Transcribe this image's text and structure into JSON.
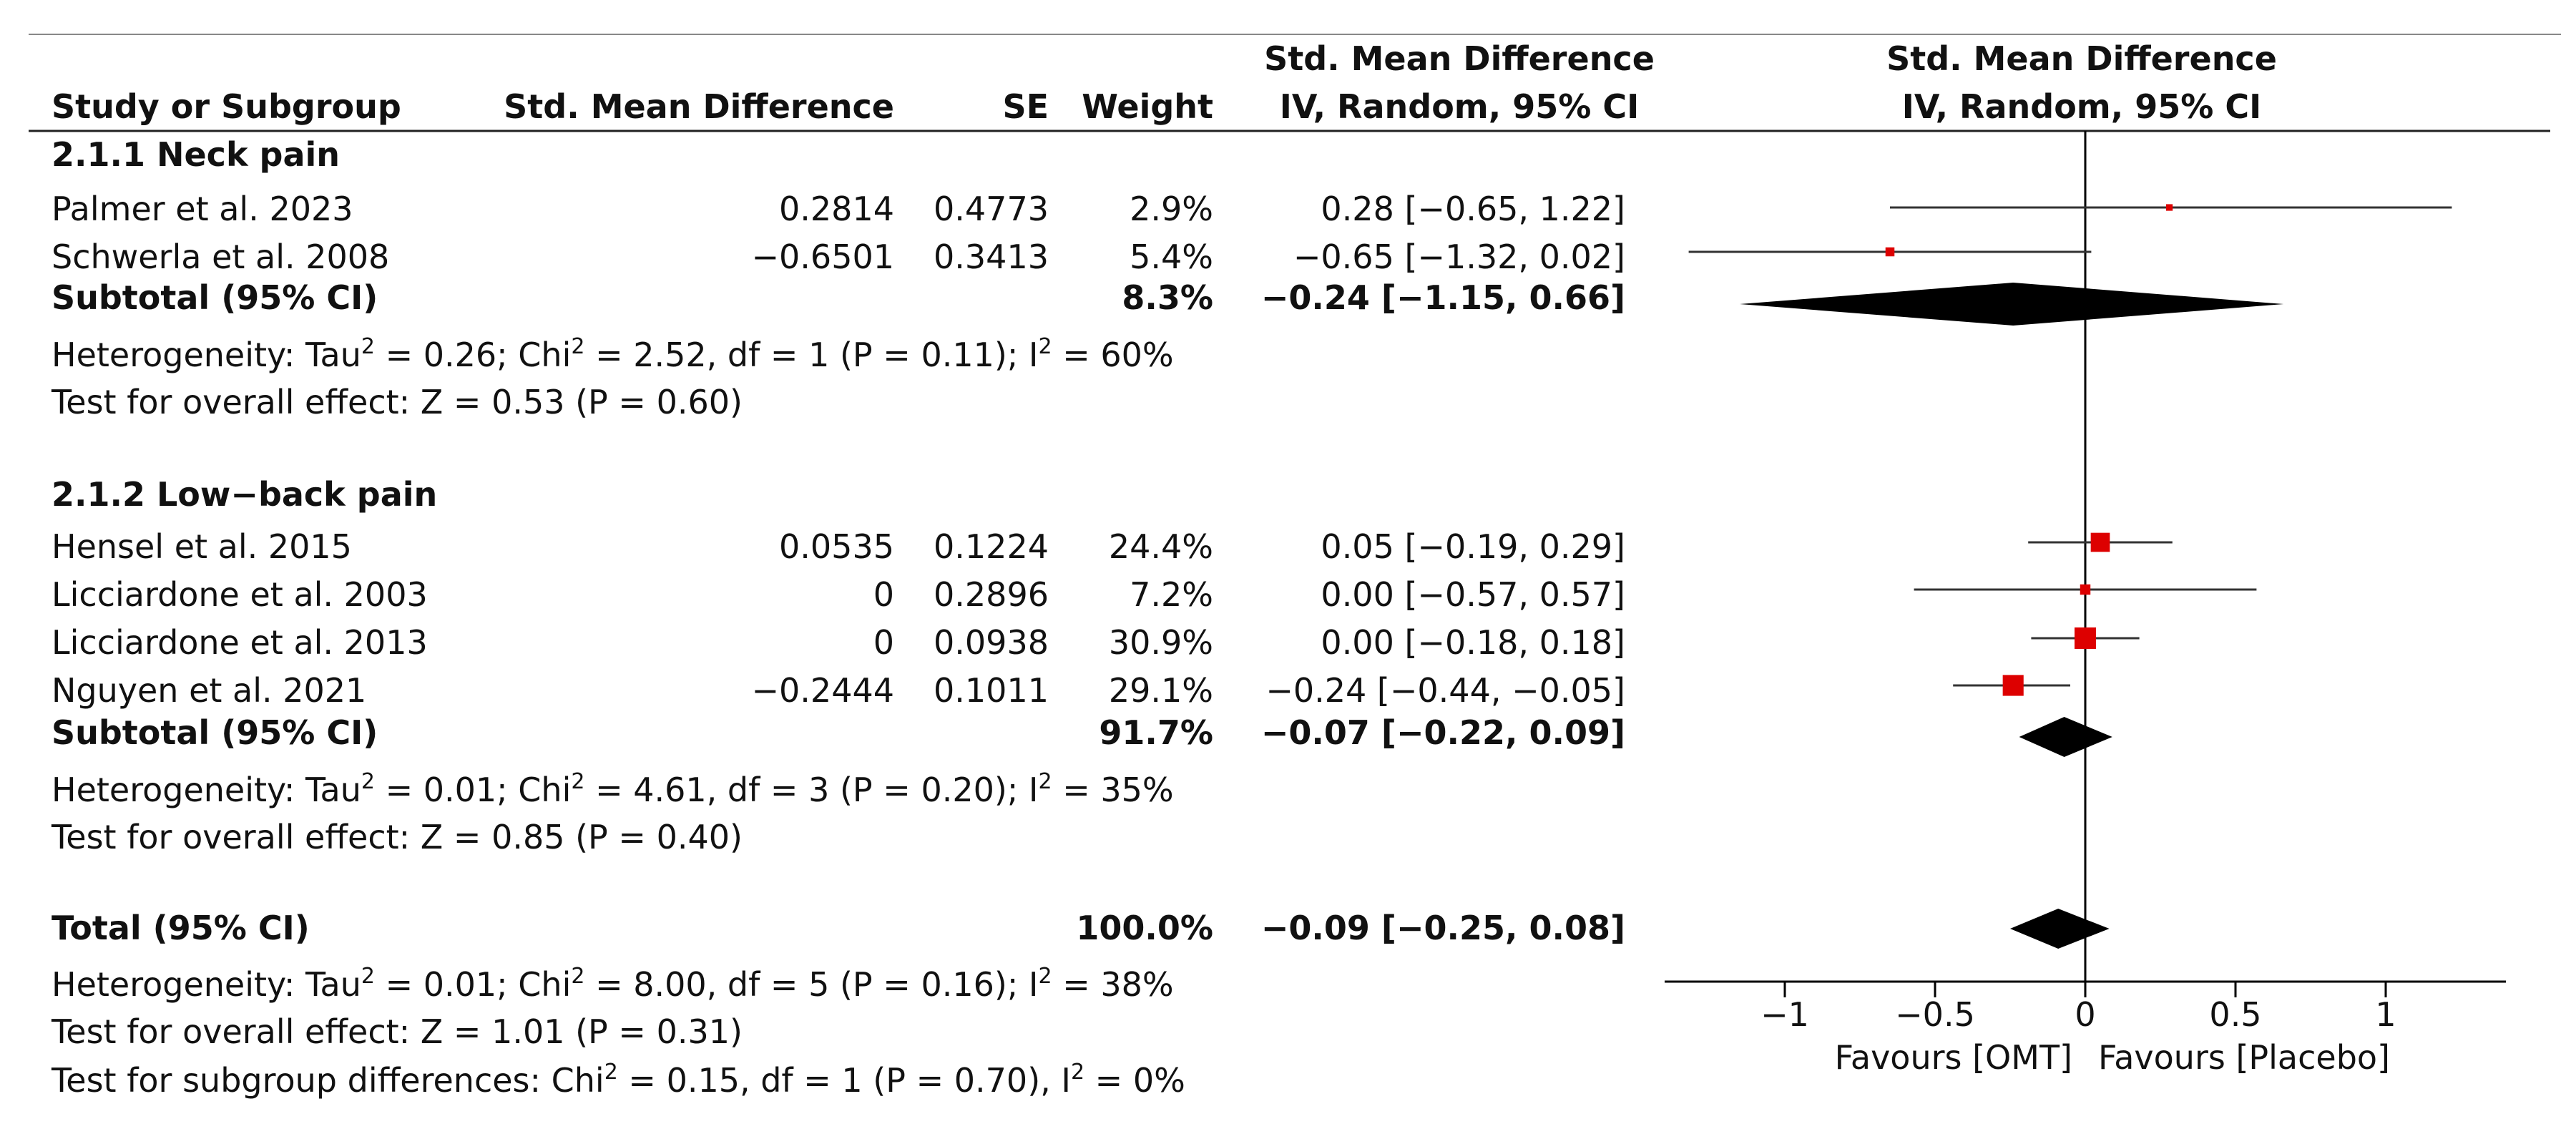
{
  "chart_data": {
    "type": "forest",
    "columns": {
      "study": "Study or Subgroup",
      "smd": "Std. Mean Difference",
      "se": "SE",
      "weight": "Weight",
      "ci_header_line1": "Std. Mean Difference",
      "ci_header_line2": "IV, Random, 95% CI",
      "plot_header_line1": "Std. Mean Difference",
      "plot_header_line2": "IV, Random, 95% CI"
    },
    "subgroups": [
      {
        "title": "2.1.1 Neck pain",
        "studies": [
          {
            "name": "Palmer et al. 2023",
            "smd": "0.2814",
            "se": "0.4773",
            "weight": "2.9%",
            "ci_text": "0.28 [−0.65, 1.22]",
            "est": 0.28,
            "lo": -0.65,
            "hi": 1.22,
            "w": 2.9
          },
          {
            "name": "Schwerla et al. 2008",
            "smd": "−0.6501",
            "se": "0.3413",
            "weight": "5.4%",
            "ci_text": "−0.65 [−1.32, 0.02]",
            "est": -0.65,
            "lo": -1.32,
            "hi": 0.02,
            "w": 5.4
          }
        ],
        "subtotal": {
          "label": "Subtotal (95% CI)",
          "weight": "8.3%",
          "ci_text": "−0.24 [−1.15, 0.66]",
          "est": -0.24,
          "lo": -1.15,
          "hi": 0.66
        },
        "heterogeneity": {
          "lead": "Heterogeneity: Tau",
          "sup1": "2",
          "mid1": " = 0.26; Chi",
          "sup2": "2",
          "mid2": " = 2.52, df = 1 (P = 0.11); I",
          "sup3": "2",
          "tail": " = 60%"
        },
        "overall": "Test for overall effect: Z = 0.53 (P = 0.60)"
      },
      {
        "title": "2.1.2 Low−back pain",
        "studies": [
          {
            "name": "Hensel et al. 2015",
            "smd": "0.0535",
            "se": "0.1224",
            "weight": "24.4%",
            "ci_text": "0.05 [−0.19, 0.29]",
            "est": 0.05,
            "lo": -0.19,
            "hi": 0.29,
            "w": 24.4
          },
          {
            "name": "Licciardone et al. 2003",
            "smd": "0",
            "se": "0.2896",
            "weight": "7.2%",
            "ci_text": "0.00 [−0.57, 0.57]",
            "est": 0.0,
            "lo": -0.57,
            "hi": 0.57,
            "w": 7.2
          },
          {
            "name": "Licciardone et al. 2013",
            "smd": "0",
            "se": "0.0938",
            "weight": "30.9%",
            "ci_text": "0.00 [−0.18, 0.18]",
            "est": 0.0,
            "lo": -0.18,
            "hi": 0.18,
            "w": 30.9
          },
          {
            "name": "Nguyen et al. 2021",
            "smd": "−0.2444",
            "se": "0.1011",
            "weight": "29.1%",
            "ci_text": "−0.24 [−0.44, −0.05]",
            "est": -0.24,
            "lo": -0.44,
            "hi": -0.05,
            "w": 29.1
          }
        ],
        "subtotal": {
          "label": "Subtotal (95% CI)",
          "weight": "91.7%",
          "ci_text": "−0.07 [−0.22, 0.09]",
          "est": -0.07,
          "lo": -0.22,
          "hi": 0.09
        },
        "heterogeneity": {
          "lead": "Heterogeneity: Tau",
          "sup1": "2",
          "mid1": " = 0.01; Chi",
          "sup2": "2",
          "mid2": " = 4.61, df = 3 (P = 0.20); I",
          "sup3": "2",
          "tail": " = 35%"
        },
        "overall": "Test for overall effect: Z = 0.85 (P = 0.40)"
      }
    ],
    "total": {
      "label": "Total (95% CI)",
      "weight": "100.0%",
      "ci_text": "−0.09 [−0.25, 0.08]",
      "est": -0.09,
      "lo": -0.25,
      "hi": 0.08,
      "heterogeneity": {
        "lead": "Heterogeneity: Tau",
        "sup1": "2",
        "mid1": " = 0.01; Chi",
        "sup2": "2",
        "mid2": " = 8.00, df = 5 (P = 0.16); I",
        "sup3": "2",
        "tail": " = 38%"
      },
      "overall": "Test for overall effect: Z = 1.01 (P = 0.31)",
      "subgroup_diff": {
        "lead": "Test for subgroup differences: Chi",
        "sup1": "2",
        "mid1": " = 0.15, df = 1 (P = 0.70), I",
        "sup2": "2",
        "tail": " = 0%"
      }
    },
    "axis": {
      "xlim": [
        -1.4,
        1.4
      ],
      "ticks": [
        -1,
        -0.5,
        0,
        0.5,
        1
      ],
      "tick_labels": [
        "−1",
        "−0.5",
        "0",
        "0.5",
        "1"
      ],
      "favours_left": "Favours [OMT]",
      "favours_right": "Favours [Placebo]"
    },
    "colors": {
      "marker": "#dd0000",
      "line": "#333333",
      "diamond": "#000000"
    }
  }
}
